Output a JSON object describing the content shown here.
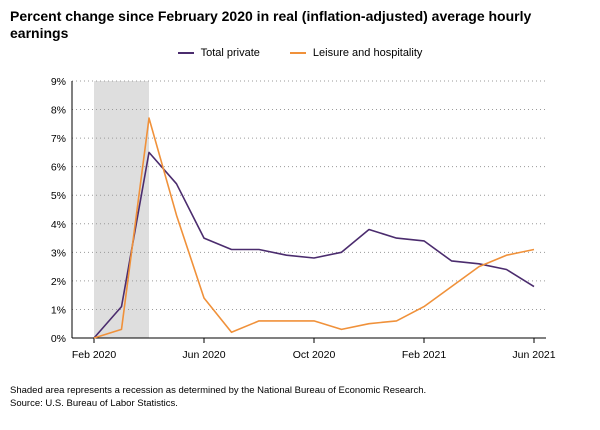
{
  "chart_data": {
    "type": "line",
    "title": "Percent change since February 2020 in real (inflation-adjusted) average hourly earnings",
    "x": [
      "2020-02",
      "2020-03",
      "2020-04",
      "2020-05",
      "2020-06",
      "2020-07",
      "2020-08",
      "2020-09",
      "2020-10",
      "2020-11",
      "2020-12",
      "2021-01",
      "2021-02",
      "2021-03",
      "2021-04",
      "2021-05",
      "2021-06"
    ],
    "x_tick_labels": [
      "Feb 2020",
      "Jun 2020",
      "Oct 2020",
      "Feb 2021",
      "Jun 2021"
    ],
    "x_tick_dates": [
      "2020-02",
      "2020-06",
      "2020-10",
      "2021-02",
      "2021-06"
    ],
    "y_tick_labels": [
      "0%",
      "1%",
      "2%",
      "3%",
      "4%",
      "5%",
      "6%",
      "7%",
      "8%",
      "9%"
    ],
    "ylim": [
      0,
      9
    ],
    "grid": "horizontal-dotted",
    "legend_position": "top-center",
    "series": [
      {
        "name": "Total private",
        "color": "#4b2c6e",
        "values": [
          0.0,
          1.1,
          6.5,
          5.4,
          3.5,
          3.1,
          3.1,
          2.9,
          2.8,
          3.0,
          3.8,
          3.5,
          3.4,
          2.7,
          2.6,
          2.4,
          1.8
        ]
      },
      {
        "name": "Leisure and hospitality",
        "color": "#f0913a",
        "values": [
          0.0,
          0.3,
          7.7,
          4.3,
          1.4,
          0.2,
          0.6,
          0.6,
          0.6,
          0.3,
          0.5,
          0.6,
          1.1,
          1.8,
          2.5,
          2.9,
          3.1
        ]
      }
    ],
    "recession": {
      "start": "2020-02",
      "end": "2020-04",
      "color": "#dedede"
    }
  },
  "notes": [
    "Shaded area represents a recession as determined by the National Bureau of Economic Research.",
    "Source: U.S. Bureau of Labor Statistics."
  ]
}
